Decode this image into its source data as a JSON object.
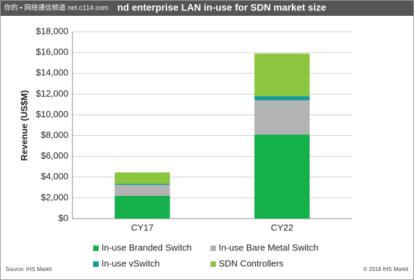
{
  "watermark": "你的 • 网络通信频道 net.c114.com",
  "chart_data": {
    "type": "stacked_bar",
    "title": "nd enterprise LAN in-use for SDN market size",
    "y_label": "Revenue (US$M)",
    "categories": [
      "CY17",
      "CY22"
    ],
    "series": [
      {
        "name": "In-use Branded Switch",
        "color": "#14b04a",
        "values": [
          2200,
          8100
        ]
      },
      {
        "name": "In-use Bare Metal Switch",
        "color": "#b3b3b3",
        "values": [
          1050,
          3300
        ]
      },
      {
        "name": "In-use vSwitch",
        "color": "#0e9c94",
        "values": [
          100,
          400
        ]
      },
      {
        "name": "SDN Controllers",
        "color": "#8cc63f",
        "values": [
          1100,
          4100
        ]
      }
    ],
    "ylim": [
      0,
      18000
    ],
    "yticks": [
      {
        "value": 0,
        "label": "$0"
      },
      {
        "value": 2000,
        "label": "$2,000"
      },
      {
        "value": 4000,
        "label": "$4,000"
      },
      {
        "value": 6000,
        "label": "$6,000"
      },
      {
        "value": 8000,
        "label": "$8,000"
      },
      {
        "value": 10000,
        "label": "$10,000"
      },
      {
        "value": 12000,
        "label": "$12,000"
      },
      {
        "value": 14000,
        "label": "$14,000"
      },
      {
        "value": 16000,
        "label": "$16,000"
      },
      {
        "value": 18000,
        "label": "$18,000"
      }
    ],
    "grid": true,
    "source": "Source: IHS Markit",
    "copyright": "© 2018 IHS Markit"
  }
}
